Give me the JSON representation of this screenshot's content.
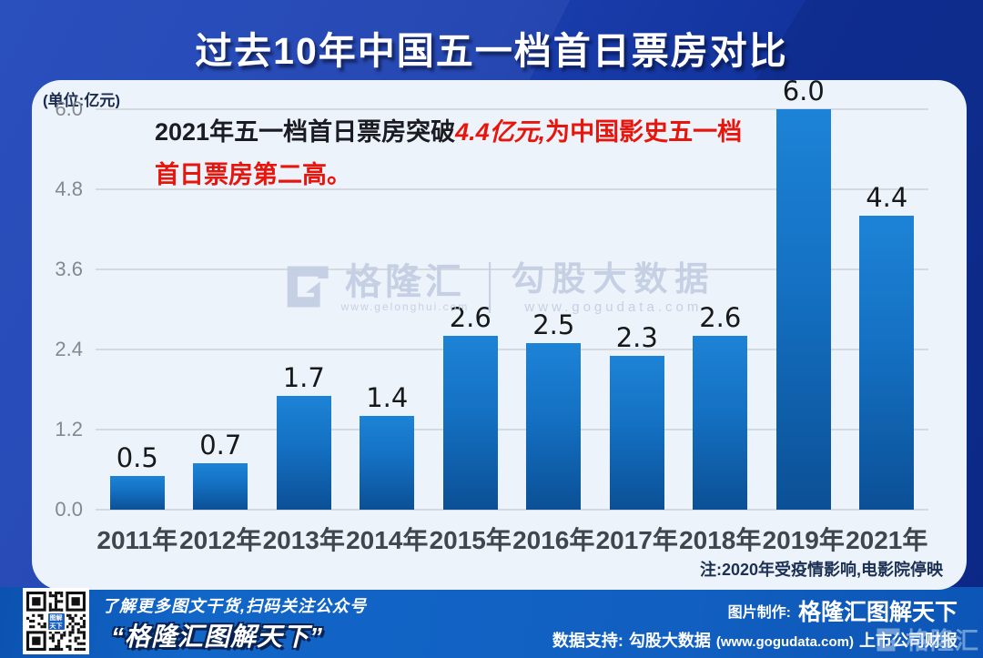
{
  "header": {
    "title": "过去10年中国五一档首日票房对比"
  },
  "chart_data": {
    "type": "bar",
    "title": "过去10年中国五一档首日票房对比",
    "unit_label": "(单位:亿元)",
    "categories": [
      "2011年",
      "2012年",
      "2013年",
      "2014年",
      "2015年",
      "2016年",
      "2017年",
      "2018年",
      "2019年",
      "2021年"
    ],
    "values": [
      0.5,
      0.7,
      1.7,
      1.4,
      2.6,
      2.5,
      2.3,
      2.6,
      6.0,
      4.4
    ],
    "yticks": [
      0.0,
      1.2,
      2.4,
      3.6,
      4.8,
      6.0
    ],
    "ylim": [
      0,
      6.0
    ],
    "grid": true,
    "legend": "none",
    "bar_color_top": "#1d83d6",
    "bar_color_bottom": "#0b5096"
  },
  "annotation": {
    "prefix": "2021年五一档首日票房突破",
    "highlight": "4.4亿元,",
    "suffix": "为中国影史五一档",
    "line2": "首日票房第二高。",
    "highlight_color": "#e8150d"
  },
  "watermark": {
    "brand": "格隆汇",
    "brand_url": "www.gelonghui.com",
    "partner": "勾股大数据",
    "partner_url": "www.gogudata.com"
  },
  "note": "注:2020年受疫情影响,电影院停映",
  "footer": {
    "qr_caption_line1": "了解更多图文干货,扫码关注公众号",
    "qr_caption_line2": "“格隆汇图解天下”",
    "qr_center_text": "图解天下",
    "credit_label": "图片制作:",
    "credit_brand": "格隆汇图解天下",
    "support_label": "数据支持:",
    "support_source": "勾股大数据",
    "support_url": "(www.gogudata.com)",
    "support_extra": "上市公司财报",
    "corner_watermark": "格隆汇"
  },
  "colors": {
    "background_blue": "#1a3eae",
    "footer_blue": "#1166c8",
    "panel_bg": "#edf3fa",
    "annotation_red": "#e8150d",
    "watermark_gray_blue": "#c4cfe3"
  }
}
